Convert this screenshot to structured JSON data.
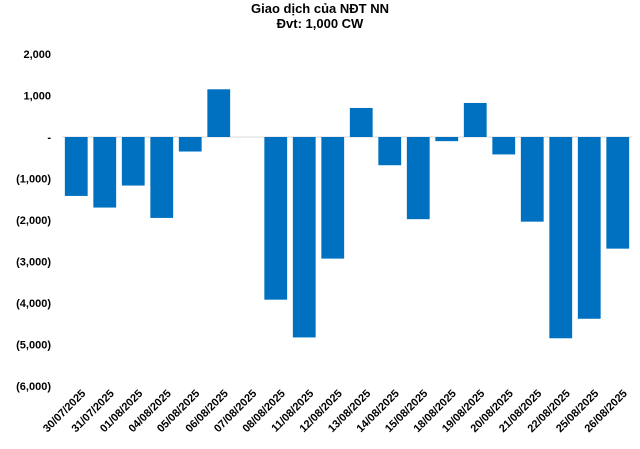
{
  "chart_data": {
    "type": "bar",
    "title": "Giao dịch của NĐT NN",
    "subtitle": "Đvt: 1,000 CW",
    "xlabel": "",
    "ylabel": "",
    "ylim": [
      -6000,
      2000
    ],
    "yticks": [
      2000,
      1000,
      0,
      -1000,
      -2000,
      -3000,
      -4000,
      -5000,
      -6000
    ],
    "ytick_labels": [
      "2,000",
      "1,000",
      "-",
      "(1,000)",
      "(2,000)",
      "(3,000)",
      "(4,000)",
      "(5,000)",
      "(6,000)"
    ],
    "grid": false,
    "legend": "none",
    "bar_color": "#0070C0",
    "categories": [
      "30/07/2025",
      "31/07/2025",
      "01/08/2025",
      "04/08/2025",
      "05/08/2025",
      "06/08/2025",
      "07/08/2025",
      "08/08/2025",
      "11/08/2025",
      "12/08/2025",
      "13/08/2025",
      "14/08/2025",
      "15/08/2025",
      "18/08/2025",
      "19/08/2025",
      "20/08/2025",
      "21/08/2025",
      "22/08/2025",
      "25/08/2025",
      "26/08/2025"
    ],
    "values": [
      -1420,
      -1700,
      -1170,
      -1950,
      -350,
      1150,
      0,
      -3920,
      -4830,
      -2930,
      700,
      -680,
      -1980,
      -100,
      820,
      -420,
      -2040,
      -4850,
      -4380,
      -2690
    ]
  }
}
